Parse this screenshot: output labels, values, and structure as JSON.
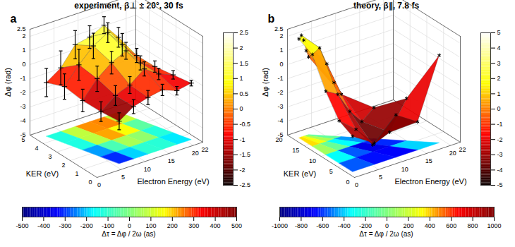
{
  "chart_data": [
    {
      "type": "surface3d",
      "panel": "a",
      "title": "experiment, β⊥ ± 20°, 30 fs",
      "x_label": "Electron Energy (eV)",
      "y_label": "KER (eV)",
      "z_label": "Δφ (rad)",
      "xlim": [
        0,
        22
      ],
      "xticks": [
        0,
        5,
        10,
        15,
        20,
        22
      ],
      "ylim": [
        0,
        5
      ],
      "yticks": [
        0,
        1,
        2,
        3,
        4,
        5
      ],
      "zlim": [
        -5,
        2.5
      ],
      "zticks": [
        -5,
        -4,
        -3,
        -2,
        -1,
        0,
        1,
        2,
        2.5
      ],
      "grid": true,
      "marker": "plus",
      "surface": [
        {
          "ker": 0.5,
          "energy": [
            6,
            9,
            12,
            15,
            18,
            21
          ],
          "dphi": [
            -2.0,
            -1.3,
            -1.0,
            -0.8,
            -1.2,
            -1.0
          ],
          "error": [
            0.6,
            0.5,
            0.5,
            0.4,
            0.3,
            0.2
          ]
        },
        {
          "ker": 1.5,
          "energy": [
            5,
            8,
            11,
            14,
            17,
            20
          ],
          "dphi": [
            -1.8,
            -1.0,
            -0.6,
            0.2,
            -0.5,
            -0.9
          ],
          "error": [
            0.7,
            0.7,
            0.6,
            0.5,
            0.4,
            0.3
          ]
        },
        {
          "ker": 2.5,
          "energy": [
            4,
            7,
            10,
            13,
            16,
            19
          ],
          "dphi": [
            -1.5,
            -0.3,
            0.5,
            1.0,
            -0.2,
            -0.8
          ],
          "error": [
            0.8,
            0.9,
            0.8,
            0.6,
            0.5,
            0.4
          ]
        },
        {
          "ker": 3.5,
          "energy": [
            3,
            6,
            9,
            12,
            15,
            18
          ],
          "dphi": [
            -1.0,
            0.2,
            1.2,
            1.8,
            0.6,
            -0.5
          ],
          "error": [
            0.9,
            1.1,
            0.9,
            0.7,
            0.8,
            0.5
          ]
        },
        {
          "ker": 4.5,
          "energy": [
            2,
            5,
            8,
            11,
            14,
            17
          ],
          "dphi": [
            -1.2,
            -0.5,
            0.8,
            1.0,
            1.5,
            0.3
          ],
          "error": [
            1.0,
            1.2,
            1.0,
            0.8,
            0.6,
            0.7
          ]
        }
      ],
      "colorbar": {
        "range": [
          -2.5,
          2.5
        ],
        "ticks": [
          -2.5,
          -2,
          -1.5,
          -1,
          -0.5,
          0,
          0.5,
          1,
          1.5,
          2,
          2.5
        ]
      },
      "floor_colorbar": {
        "label": "Δτ = Δφ / 2ω (as)",
        "range": [
          -500,
          500
        ],
        "ticks": [
          -500,
          -400,
          -300,
          -200,
          -100,
          0,
          100,
          200,
          300,
          400,
          500
        ]
      }
    },
    {
      "type": "surface3d",
      "panel": "b",
      "title": "theory, β∥, 7.8 fs",
      "x_label": "Electron Energy (eV)",
      "y_label": "KER (eV)",
      "z_label": "Δφ (rad)",
      "xlim": [
        0,
        22
      ],
      "xticks": [
        0,
        5,
        10,
        15,
        20,
        22
      ],
      "ylim": [
        0,
        20
      ],
      "yticks": [
        0,
        5,
        10,
        15,
        20
      ],
      "zlim": [
        -5,
        2.5
      ],
      "zticks": [
        -5,
        -4,
        -3,
        -2,
        -1,
        0,
        1,
        2,
        2.5
      ],
      "grid": true,
      "marker": "asterisk",
      "surface": [
        {
          "ker": 2,
          "energy": [
            1,
            5.5,
            10,
            14.5,
            19
          ],
          "dphi": [
            -2.5,
            -3.5,
            -2.0,
            -3.0,
            1.2
          ]
        },
        {
          "ker": 6,
          "energy": [
            1,
            4.5,
            8,
            11.5,
            15
          ],
          "dphi": [
            -2.0,
            -3.0,
            -4.5,
            -4.0,
            -2.0
          ]
        },
        {
          "ker": 10,
          "energy": [
            1,
            3.5,
            6,
            8.5,
            11
          ],
          "dphi": [
            -0.5,
            -1.0,
            -2.5,
            -3.5,
            -2.8
          ]
        },
        {
          "ker": 14,
          "energy": [
            1,
            2.5,
            4,
            5.5,
            7
          ],
          "dphi": [
            1.5,
            1.8,
            0.5,
            -1.0,
            -2.0
          ]
        },
        {
          "ker": 18,
          "energy": [
            1,
            1.5,
            2,
            2.5,
            3
          ],
          "dphi": [
            2.0,
            2.2,
            1.8,
            1.0,
            0.5
          ]
        }
      ],
      "colorbar": {
        "range": [
          -5,
          5
        ],
        "ticks": [
          -5,
          -4,
          -3,
          -2,
          -1,
          0,
          1,
          2,
          3,
          4,
          5
        ]
      },
      "floor_colorbar": {
        "label": "Δτ = Δφ / 2ω (as)",
        "range": [
          -1000,
          1000
        ],
        "ticks": [
          -1000,
          -800,
          -600,
          -400,
          -200,
          0,
          200,
          400,
          600,
          800,
          1000
        ]
      }
    }
  ]
}
